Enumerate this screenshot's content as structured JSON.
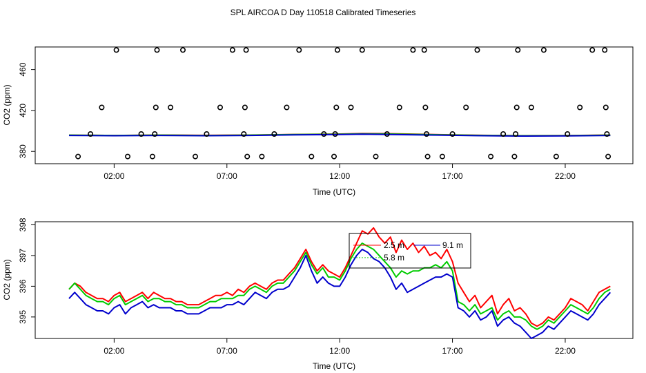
{
  "chart_data": [
    {
      "type": "scatter",
      "title": "SPL AIRCOA D  Day 110518  Calibrated Timeseries",
      "xlabel": "Time (UTC)",
      "ylabel": "CO2 (ppm)",
      "xlim": [
        -1.5,
        25.0
      ],
      "ylim": [
        368,
        482
      ],
      "xticks": [
        2,
        7,
        12,
        17,
        22
      ],
      "xtick_labels": [
        "02:00",
        "07:00",
        "12:00",
        "17:00",
        "22:00"
      ],
      "yticks": [
        380,
        420,
        460
      ],
      "ytick_labels": [
        "380",
        "420",
        "460"
      ],
      "grid": false,
      "points": [
        {
          "x": 0.4,
          "y": 375
        },
        {
          "x": 0.95,
          "y": 397
        },
        {
          "x": 1.45,
          "y": 423
        },
        {
          "x": 2.1,
          "y": 479
        },
        {
          "x": 2.6,
          "y": 375
        },
        {
          "x": 3.2,
          "y": 397
        },
        {
          "x": 3.7,
          "y": 375
        },
        {
          "x": 3.8,
          "y": 397
        },
        {
          "x": 3.85,
          "y": 423
        },
        {
          "x": 3.9,
          "y": 479
        },
        {
          "x": 4.5,
          "y": 423
        },
        {
          "x": 5.05,
          "y": 479
        },
        {
          "x": 5.6,
          "y": 375
        },
        {
          "x": 6.1,
          "y": 397
        },
        {
          "x": 6.7,
          "y": 423
        },
        {
          "x": 7.25,
          "y": 479
        },
        {
          "x": 7.75,
          "y": 397
        },
        {
          "x": 7.8,
          "y": 423
        },
        {
          "x": 7.85,
          "y": 479
        },
        {
          "x": 7.9,
          "y": 375
        },
        {
          "x": 8.55,
          "y": 375
        },
        {
          "x": 9.1,
          "y": 397
        },
        {
          "x": 9.65,
          "y": 423
        },
        {
          "x": 10.2,
          "y": 479
        },
        {
          "x": 10.75,
          "y": 375
        },
        {
          "x": 11.3,
          "y": 397
        },
        {
          "x": 11.75,
          "y": 375
        },
        {
          "x": 11.8,
          "y": 397
        },
        {
          "x": 11.85,
          "y": 423
        },
        {
          "x": 11.9,
          "y": 479
        },
        {
          "x": 12.5,
          "y": 423
        },
        {
          "x": 13.0,
          "y": 479
        },
        {
          "x": 13.6,
          "y": 375
        },
        {
          "x": 14.1,
          "y": 397
        },
        {
          "x": 14.65,
          "y": 423
        },
        {
          "x": 15.25,
          "y": 479
        },
        {
          "x": 15.75,
          "y": 479
        },
        {
          "x": 15.8,
          "y": 423
        },
        {
          "x": 15.85,
          "y": 397
        },
        {
          "x": 15.9,
          "y": 375
        },
        {
          "x": 16.55,
          "y": 375
        },
        {
          "x": 17.0,
          "y": 397
        },
        {
          "x": 17.6,
          "y": 423
        },
        {
          "x": 18.1,
          "y": 479
        },
        {
          "x": 18.7,
          "y": 375
        },
        {
          "x": 19.25,
          "y": 397
        },
        {
          "x": 19.75,
          "y": 375
        },
        {
          "x": 19.8,
          "y": 397
        },
        {
          "x": 19.85,
          "y": 423
        },
        {
          "x": 19.9,
          "y": 479
        },
        {
          "x": 20.5,
          "y": 423
        },
        {
          "x": 21.05,
          "y": 479
        },
        {
          "x": 21.6,
          "y": 375
        },
        {
          "x": 22.1,
          "y": 397
        },
        {
          "x": 22.65,
          "y": 423
        },
        {
          "x": 23.2,
          "y": 479
        },
        {
          "x": 23.75,
          "y": 479
        },
        {
          "x": 23.8,
          "y": 423
        },
        {
          "x": 23.85,
          "y": 397
        },
        {
          "x": 23.9,
          "y": 375
        }
      ],
      "series": [
        {
          "color": "#ff0000",
          "x": [
            0,
            2,
            4,
            6,
            8,
            10,
            12,
            13,
            14,
            16,
            18,
            20,
            22,
            24
          ],
          "values": [
            395.9,
            395.6,
            396.0,
            395.7,
            396.0,
            396.6,
            397.0,
            397.5,
            397.4,
            396.6,
            395.8,
            395.4,
            395.5,
            396.0
          ]
        },
        {
          "color": "#00cc00",
          "x": [
            0,
            2,
            4,
            6,
            8,
            10,
            12,
            13,
            14,
            16,
            18,
            20,
            22,
            24
          ],
          "values": [
            395.9,
            395.6,
            395.9,
            395.6,
            395.9,
            396.5,
            396.9,
            397.2,
            397.1,
            396.4,
            395.7,
            395.3,
            395.4,
            395.9
          ]
        },
        {
          "color": "#0000cc",
          "x": [
            0,
            2,
            4,
            6,
            8,
            10,
            12,
            13,
            14,
            16,
            18,
            20,
            22,
            24
          ],
          "values": [
            395.6,
            395.3,
            395.6,
            395.3,
            395.6,
            396.1,
            396.5,
            396.8,
            396.6,
            396.0,
            395.4,
            395.0,
            395.1,
            395.6
          ]
        }
      ]
    },
    {
      "type": "line",
      "xlabel": "Time (UTC)",
      "ylabel": "CO2 (ppm)",
      "xlim": [
        -1.5,
        25.0
      ],
      "ylim": [
        394.3,
        398.1
      ],
      "xticks": [
        2,
        7,
        12,
        17,
        22
      ],
      "xtick_labels": [
        "02:00",
        "07:00",
        "12:00",
        "17:00",
        "22:00"
      ],
      "yticks": [
        395,
        396,
        397,
        398
      ],
      "ytick_labels": [
        "395",
        "396",
        "397",
        "398"
      ],
      "grid": false,
      "legend": {
        "placement": "top-center",
        "entries": [
          {
            "label": "2.5 m",
            "color": "#ff0000"
          },
          {
            "label": "9.1 m",
            "color": "#0000cc"
          },
          {
            "label": "5.8 m",
            "color": "#00cc00"
          }
        ]
      },
      "x": [
        0.0,
        0.25,
        0.5,
        0.75,
        1.0,
        1.25,
        1.5,
        1.75,
        2.0,
        2.25,
        2.5,
        2.75,
        3.0,
        3.25,
        3.5,
        3.75,
        4.0,
        4.25,
        4.5,
        4.75,
        5.0,
        5.25,
        5.5,
        5.75,
        6.0,
        6.25,
        6.5,
        6.75,
        7.0,
        7.25,
        7.5,
        7.75,
        8.0,
        8.25,
        8.5,
        8.75,
        9.0,
        9.25,
        9.5,
        9.75,
        10.0,
        10.25,
        10.5,
        10.75,
        11.0,
        11.25,
        11.5,
        11.75,
        12.0,
        12.25,
        12.5,
        12.75,
        13.0,
        13.25,
        13.5,
        13.75,
        14.0,
        14.25,
        14.5,
        14.75,
        15.0,
        15.25,
        15.5,
        15.75,
        16.0,
        16.25,
        16.5,
        16.75,
        17.0,
        17.25,
        17.5,
        17.75,
        18.0,
        18.25,
        18.5,
        18.75,
        19.0,
        19.25,
        19.5,
        19.75,
        20.0,
        20.25,
        20.5,
        20.75,
        21.0,
        21.25,
        21.5,
        21.75,
        22.0,
        22.25,
        22.5,
        22.75,
        23.0,
        23.25,
        23.5,
        23.75,
        24.0
      ],
      "series": [
        {
          "name": "2.5 m",
          "color": "#ff0000",
          "values": [
            395.9,
            396.1,
            396.0,
            395.8,
            395.7,
            395.6,
            395.6,
            395.5,
            395.7,
            395.8,
            395.5,
            395.6,
            395.7,
            395.8,
            395.6,
            395.8,
            395.7,
            395.6,
            395.6,
            395.5,
            395.5,
            395.4,
            395.4,
            395.4,
            395.5,
            395.6,
            395.7,
            395.7,
            395.8,
            395.7,
            395.9,
            395.8,
            396.0,
            396.1,
            396.0,
            395.9,
            396.1,
            396.2,
            396.2,
            396.4,
            396.6,
            396.9,
            397.2,
            396.8,
            396.5,
            396.7,
            396.5,
            396.4,
            396.3,
            396.6,
            397.0,
            397.4,
            397.8,
            397.7,
            397.9,
            397.6,
            397.4,
            397.6,
            397.1,
            397.5,
            397.2,
            397.4,
            397.1,
            397.3,
            397.0,
            397.1,
            396.9,
            397.2,
            396.8,
            396.1,
            395.8,
            395.5,
            395.7,
            395.3,
            395.5,
            395.7,
            395.1,
            395.4,
            395.6,
            395.2,
            395.3,
            395.1,
            394.8,
            394.7,
            394.8,
            395.0,
            394.9,
            395.1,
            395.3,
            395.6,
            395.5,
            395.4,
            395.2,
            395.5,
            395.8,
            395.9,
            396.0
          ]
        },
        {
          "name": "5.8 m",
          "color": "#00cc00",
          "values": [
            395.9,
            396.1,
            395.9,
            395.7,
            395.6,
            395.5,
            395.5,
            395.4,
            395.6,
            395.7,
            395.4,
            395.5,
            395.6,
            395.7,
            395.5,
            395.6,
            395.6,
            395.5,
            395.5,
            395.4,
            395.4,
            395.3,
            395.3,
            395.3,
            395.4,
            395.5,
            395.5,
            395.6,
            395.6,
            395.6,
            395.7,
            395.7,
            395.9,
            396.0,
            395.9,
            395.8,
            396.0,
            396.1,
            396.1,
            396.3,
            396.5,
            396.8,
            397.1,
            396.7,
            396.4,
            396.6,
            396.3,
            396.3,
            396.2,
            396.5,
            396.9,
            397.2,
            397.4,
            397.3,
            397.2,
            397.0,
            396.8,
            396.6,
            396.3,
            396.5,
            396.4,
            396.5,
            396.5,
            396.6,
            396.6,
            396.7,
            396.6,
            396.8,
            396.5,
            395.5,
            395.4,
            395.2,
            395.4,
            395.1,
            395.2,
            395.3,
            394.9,
            395.1,
            395.2,
            395.0,
            395.0,
            394.9,
            394.7,
            394.6,
            394.7,
            394.9,
            394.8,
            395.0,
            395.2,
            395.4,
            395.3,
            395.2,
            395.1,
            395.3,
            395.6,
            395.8,
            395.9
          ]
        },
        {
          "name": "9.1 m",
          "color": "#0000cc",
          "values": [
            395.6,
            395.8,
            395.6,
            395.4,
            395.3,
            395.2,
            395.2,
            395.1,
            395.3,
            395.4,
            395.1,
            395.3,
            395.4,
            395.5,
            395.3,
            395.4,
            395.3,
            395.3,
            395.3,
            395.2,
            395.2,
            395.1,
            395.1,
            395.1,
            395.2,
            395.3,
            395.3,
            395.3,
            395.4,
            395.4,
            395.5,
            395.4,
            395.6,
            395.8,
            395.7,
            395.6,
            395.8,
            395.9,
            395.9,
            396.0,
            396.3,
            396.6,
            397.0,
            396.5,
            396.1,
            396.3,
            396.1,
            396.0,
            396.0,
            396.3,
            396.7,
            397.0,
            397.2,
            397.1,
            396.9,
            396.8,
            396.6,
            396.3,
            395.9,
            396.1,
            395.8,
            395.9,
            396.0,
            396.1,
            396.2,
            396.3,
            396.3,
            396.4,
            396.3,
            395.3,
            395.2,
            395.0,
            395.2,
            394.9,
            395.0,
            395.2,
            394.7,
            394.9,
            395.0,
            394.8,
            394.7,
            394.5,
            394.3,
            394.4,
            394.5,
            394.7,
            394.6,
            394.8,
            395.0,
            395.2,
            395.1,
            395.0,
            394.9,
            395.1,
            395.4,
            395.6,
            395.8
          ]
        }
      ]
    }
  ]
}
